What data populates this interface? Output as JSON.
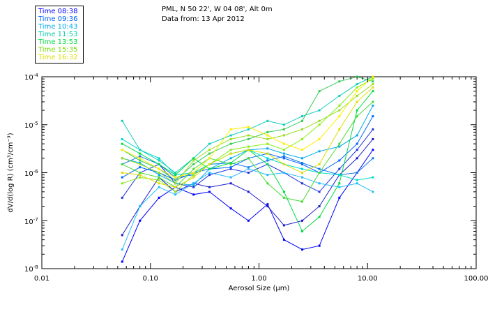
{
  "header": {
    "location": "PML, N 50 22', W 04 08', Alt 0m",
    "data_from": "Data from: 13 Apr 2012"
  },
  "chart_data": {
    "type": "line",
    "title": "PML, N 50 22', W 04 08', Alt 0m",
    "subtitle": "Data from: 13 Apr 2012",
    "xlabel": "Aerosol Size (μm)",
    "ylabel": "dV/d(log R) (cm³/cm⁻³)",
    "xscale": "log",
    "yscale": "log",
    "xlim": [
      0.01,
      100
    ],
    "ylim": [
      1e-08,
      0.0001
    ],
    "x_tick_labels": [
      "0.01",
      "0.10",
      "1.00",
      "10.00",
      "100.00"
    ],
    "y_tick_labels": [
      {
        "base": "10",
        "exp": "-4"
      },
      {
        "base": "10",
        "exp": "-5"
      },
      {
        "base": "10",
        "exp": "-6"
      },
      {
        "base": "10",
        "exp": "-7"
      },
      {
        "base": "10",
        "exp": "-8"
      }
    ],
    "legend_placement": "top-left",
    "x": [
      0.055,
      0.08,
      0.12,
      0.17,
      0.25,
      0.35,
      0.55,
      0.8,
      1.2,
      1.7,
      2.5,
      3.6,
      5.5,
      8.0,
      11.2
    ],
    "series": [
      {
        "name": "Time 08:38",
        "color": "#0000ff",
        "values": [
          1.4e-08,
          1e-07,
          3e-07,
          5e-07,
          3.5e-07,
          4e-07,
          1.8e-07,
          1e-07,
          2.2e-07,
          4e-08,
          2.5e-08,
          3e-08,
          3e-07,
          1e-06,
          3e-06
        ]
      },
      {
        "name": "Time 08:38",
        "color": "#1a1acc",
        "values": [
          5e-08,
          2e-07,
          8e-07,
          4e-07,
          6e-07,
          5e-07,
          6e-07,
          4e-07,
          2e-07,
          8e-08,
          1e-07,
          2e-07,
          9e-07,
          2e-06,
          5e-06
        ]
      },
      {
        "name": "Time 08:38",
        "color": "#2233dd",
        "values": [
          3e-07,
          1e-06,
          1.5e-06,
          6e-07,
          5e-07,
          9e-07,
          1.2e-06,
          1e-06,
          1.5e-06,
          1e-06,
          6e-07,
          4e-07,
          1.2e-06,
          3e-06,
          8e-06
        ]
      },
      {
        "name": "Time 09:36",
        "color": "#0066ff",
        "values": [
          8e-07,
          1.3e-06,
          1e-06,
          7e-07,
          1e-06,
          1.2e-06,
          1.3e-06,
          2e-06,
          2.5e-06,
          2e-06,
          1.5e-06,
          1e-06,
          1.8e-06,
          4e-06,
          1.5e-05
        ]
      },
      {
        "name": "Time 09:36",
        "color": "#1177ee",
        "values": [
          1.5e-06,
          2.2e-06,
          1.5e-06,
          8e-07,
          9e-07,
          1.5e-06,
          1.6e-06,
          1.3e-06,
          1.8e-06,
          2.2e-06,
          1.6e-06,
          1.2e-06,
          9e-07,
          1e-06,
          2e-06
        ]
      },
      {
        "name": "Time 10:43",
        "color": "#00aaee",
        "values": [
          2e-06,
          1.6e-06,
          9e-07,
          6e-07,
          5.5e-07,
          1.2e-06,
          2e-06,
          3e-06,
          3.2e-06,
          2.5e-06,
          2e-06,
          2.8e-06,
          3.5e-06,
          6e-06,
          2.5e-05
        ]
      },
      {
        "name": "Time 10:43",
        "color": "#22bbff",
        "values": [
          2.5e-08,
          2e-07,
          5e-07,
          3.5e-07,
          6e-07,
          1e-06,
          8e-07,
          1.2e-06,
          9e-07,
          1e-06,
          8e-07,
          6e-07,
          5e-07,
          6e-07,
          4e-07
        ]
      },
      {
        "name": "Time 11:53",
        "color": "#00ddcc",
        "values": [
          5e-06,
          3e-06,
          2e-06,
          9e-07,
          1e-06,
          1.5e-06,
          2.5e-06,
          3e-06,
          2e-06,
          1.5e-06,
          1.2e-06,
          1e-06,
          9e-07,
          7e-07,
          8e-07
        ]
      },
      {
        "name": "Time 11:53",
        "color": "#11ccbb",
        "values": [
          1.2e-05,
          3e-06,
          1.8e-06,
          1e-06,
          2e-06,
          4e-06,
          6e-06,
          8e-06,
          1.2e-05,
          1e-05,
          1.5e-05,
          2e-05,
          4e-05,
          7e-05,
          0.0001
        ]
      },
      {
        "name": "Time 13:53",
        "color": "#00dd44",
        "values": [
          4e-06,
          2.5e-06,
          1.5e-06,
          9e-07,
          2e-06,
          1.2e-06,
          1.6e-06,
          3e-06,
          1.5e-06,
          4e-07,
          6e-08,
          1.2e-07,
          6e-07,
          2e-05,
          5e-05
        ]
      },
      {
        "name": "Time 13:53",
        "color": "#33cc55",
        "values": [
          3e-06,
          1.8e-06,
          1.2e-06,
          7e-07,
          1.5e-06,
          2.5e-06,
          4e-06,
          5e-06,
          7e-06,
          8e-06,
          1.2e-05,
          5e-05,
          8e-05,
          0.0001,
          8e-05
        ]
      },
      {
        "name": "Time 13:53",
        "color": "#44dd33",
        "values": [
          1.5e-06,
          1e-06,
          8e-07,
          5e-07,
          1.2e-06,
          2e-06,
          1.5e-06,
          2e-06,
          6e-07,
          3e-07,
          2.5e-07,
          1e-06,
          4e-06,
          1.5e-05,
          3e-05
        ]
      },
      {
        "name": "Time 15:35",
        "color": "#88ee11",
        "values": [
          6e-07,
          8e-07,
          7e-07,
          4e-07,
          9e-07,
          1.5e-06,
          3e-06,
          3.5e-06,
          4e-06,
          3e-06,
          5e-06,
          1e-05,
          2.5e-05,
          6e-05,
          9e-05
        ]
      },
      {
        "name": "Time 15:35",
        "color": "#99dd22",
        "values": [
          2e-06,
          1.5e-06,
          1e-06,
          6e-07,
          1.8e-06,
          3e-06,
          5e-06,
          6e-06,
          5e-06,
          6e-06,
          8e-06,
          1.2e-05,
          2e-05,
          4e-05,
          7e-05
        ]
      },
      {
        "name": "Time 16:32",
        "color": "#ffee00",
        "values": [
          3e-06,
          2e-06,
          1.2e-06,
          8e-07,
          1e-06,
          2e-06,
          8e-06,
          9e-06,
          6e-06,
          4e-06,
          3e-06,
          5e-06,
          1.5e-05,
          5e-05,
          0.0001
        ]
      },
      {
        "name": "Time 16:32",
        "color": "#dddd00",
        "values": [
          1e-06,
          9e-07,
          6e-07,
          5e-07,
          8e-07,
          1.5e-06,
          2.5e-06,
          3e-06,
          2.5e-06,
          1.5e-06,
          1e-06,
          1.5e-06,
          8e-06,
          3e-05,
          6e-05
        ]
      }
    ]
  },
  "legend": {
    "items": [
      {
        "label": "Time 08:38",
        "color": "#0000ff"
      },
      {
        "label": "Time 09:36",
        "color": "#0066ff"
      },
      {
        "label": "Time 10:43",
        "color": "#00aaee"
      },
      {
        "label": "Time 11:53",
        "color": "#00ccaa"
      },
      {
        "label": "Time 13:53",
        "color": "#00dd44"
      },
      {
        "label": "Time 15:35",
        "color": "#77dd00"
      },
      {
        "label": "Time 16:32",
        "color": "#dddd00"
      }
    ]
  }
}
